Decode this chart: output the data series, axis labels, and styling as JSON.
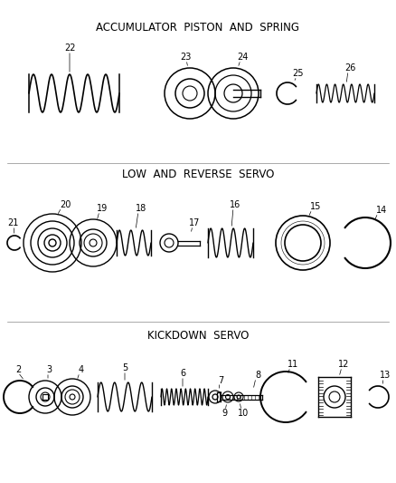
{
  "background_color": "#ffffff",
  "line_color": "#000000",
  "section1_label": "KICKDOWN SERVO",
  "section2_label": "LOW AND REVERSE SERVO",
  "section3_label": "ACCUMULATOR PISTON AND SPRING",
  "figsize": [
    4.38,
    5.33
  ],
  "dpi": 100
}
